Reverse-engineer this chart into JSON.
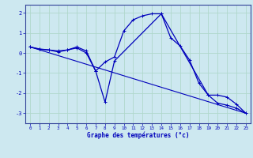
{
  "xlabel": "Graphe des températures (°c)",
  "background_color": "#cde8f0",
  "grid_color": "#b0d8cc",
  "line_color": "#0000bb",
  "spine_color": "#334499",
  "xlim": [
    -0.5,
    23.5
  ],
  "ylim": [
    -3.5,
    2.4
  ],
  "yticks": [
    -3,
    -2,
    -1,
    0,
    1,
    2
  ],
  "xticks": [
    0,
    1,
    2,
    3,
    4,
    5,
    6,
    7,
    8,
    9,
    10,
    11,
    12,
    13,
    14,
    15,
    16,
    17,
    18,
    19,
    20,
    21,
    22,
    23
  ],
  "series1_x": [
    0,
    1,
    2,
    3,
    4,
    5,
    6,
    7,
    8,
    9,
    10,
    11,
    12,
    13,
    14,
    15,
    16,
    17,
    18,
    19,
    20,
    21,
    22,
    23
  ],
  "series1_y": [
    0.3,
    0.2,
    0.15,
    0.1,
    0.15,
    0.3,
    0.1,
    -0.9,
    -0.45,
    -0.2,
    1.1,
    1.65,
    1.85,
    1.95,
    1.95,
    0.75,
    0.35,
    -0.35,
    -1.5,
    -2.1,
    -2.5,
    -2.6,
    -2.75,
    -3.0
  ],
  "series2_x": [
    0,
    1,
    2,
    3,
    4,
    5,
    6,
    7,
    8,
    9,
    14,
    19,
    20,
    21,
    22,
    23
  ],
  "series2_y": [
    0.3,
    0.18,
    0.15,
    0.05,
    0.15,
    0.25,
    0.0,
    -0.9,
    -2.45,
    -0.4,
    1.95,
    -2.1,
    -2.1,
    -2.2,
    -2.55,
    -3.0
  ],
  "series3_x": [
    0,
    23
  ],
  "series3_y": [
    0.3,
    -3.0
  ]
}
